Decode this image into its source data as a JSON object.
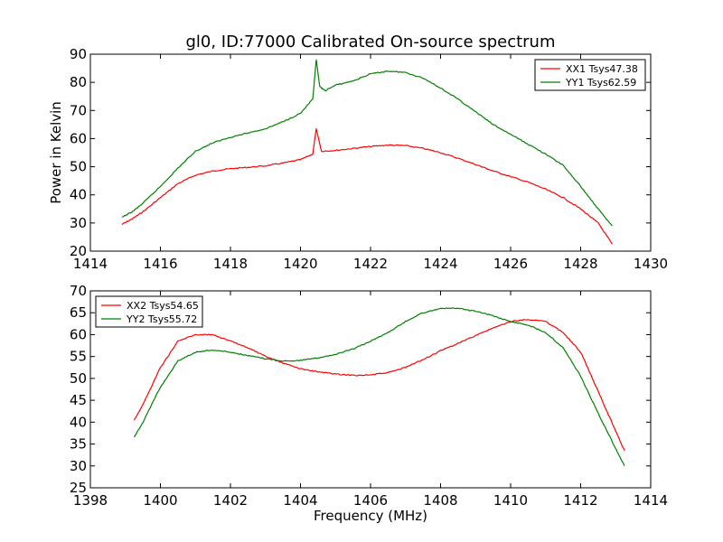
{
  "chart_data": [
    {
      "type": "line",
      "title": "gl0, ID:77000 Calibrated On-source spectrum",
      "xlabel": "",
      "ylabel": "Power in Kelvin",
      "xlim": [
        1414,
        1430
      ],
      "ylim": [
        20,
        90
      ],
      "xticks": [
        1414,
        1416,
        1418,
        1420,
        1422,
        1424,
        1426,
        1428,
        1430
      ],
      "yticks": [
        20,
        30,
        40,
        50,
        60,
        70,
        80,
        90
      ],
      "legend_position": "top-right",
      "series": [
        {
          "name": "XX1 Tsys47.38",
          "color": "#ff0000",
          "points": [
            [
              1414.9,
              29.5
            ],
            [
              1415.2,
              31.5
            ],
            [
              1415.5,
              34
            ],
            [
              1416.0,
              39
            ],
            [
              1416.5,
              44
            ],
            [
              1417.0,
              47
            ],
            [
              1417.5,
              48.5
            ],
            [
              1418.0,
              49.3
            ],
            [
              1418.5,
              49.8
            ],
            [
              1419.0,
              50.3
            ],
            [
              1419.5,
              51.3
            ],
            [
              1420.0,
              52.5
            ],
            [
              1420.35,
              54.5
            ],
            [
              1420.45,
              63.5
            ],
            [
              1420.6,
              55.5
            ],
            [
              1421.0,
              55.8
            ],
            [
              1421.5,
              56.5
            ],
            [
              1422.0,
              57.2
            ],
            [
              1422.5,
              57.7
            ],
            [
              1423.0,
              57.5
            ],
            [
              1423.5,
              56.5
            ],
            [
              1424.0,
              55
            ],
            [
              1424.5,
              53
            ],
            [
              1425.0,
              50.8
            ],
            [
              1425.5,
              48.5
            ],
            [
              1426.0,
              46.5
            ],
            [
              1426.5,
              44.5
            ],
            [
              1427.0,
              42
            ],
            [
              1427.5,
              39
            ],
            [
              1428.0,
              35
            ],
            [
              1428.5,
              30
            ],
            [
              1428.9,
              22.5
            ]
          ]
        },
        {
          "name": "YY1 Tsys62.59",
          "color": "#008000",
          "points": [
            [
              1414.9,
              32
            ],
            [
              1415.2,
              34
            ],
            [
              1415.5,
              37
            ],
            [
              1416.0,
              43
            ],
            [
              1416.5,
              49.5
            ],
            [
              1417.0,
              55.5
            ],
            [
              1417.5,
              58.5
            ],
            [
              1418.0,
              60.5
            ],
            [
              1418.5,
              62
            ],
            [
              1419.0,
              63.5
            ],
            [
              1419.5,
              66
            ],
            [
              1420.0,
              69
            ],
            [
              1420.35,
              74
            ],
            [
              1420.45,
              88
            ],
            [
              1420.55,
              78.5
            ],
            [
              1420.7,
              77
            ],
            [
              1421.0,
              79
            ],
            [
              1421.5,
              80.5
            ],
            [
              1422.0,
              83
            ],
            [
              1422.5,
              84
            ],
            [
              1423.0,
              83.5
            ],
            [
              1423.5,
              81.5
            ],
            [
              1424.0,
              78
            ],
            [
              1424.5,
              74
            ],
            [
              1425.0,
              69.5
            ],
            [
              1425.5,
              65
            ],
            [
              1426.0,
              61.5
            ],
            [
              1426.5,
              58
            ],
            [
              1427.0,
              54.5
            ],
            [
              1427.5,
              50.5
            ],
            [
              1428.0,
              43
            ],
            [
              1428.5,
              35
            ],
            [
              1428.9,
              29
            ]
          ]
        }
      ]
    },
    {
      "type": "line",
      "title": "",
      "xlabel": "Frequency (MHz)",
      "ylabel": "",
      "xlim": [
        1398,
        1414
      ],
      "ylim": [
        25,
        70
      ],
      "xticks": [
        1398,
        1400,
        1402,
        1404,
        1406,
        1408,
        1410,
        1412,
        1414
      ],
      "yticks": [
        25,
        30,
        35,
        40,
        45,
        50,
        55,
        60,
        65,
        70
      ],
      "legend_position": "top-left",
      "series": [
        {
          "name": "XX2 Tsys54.65",
          "color": "#ff0000",
          "points": [
            [
              1399.25,
              40.5
            ],
            [
              1399.5,
              44
            ],
            [
              1400.0,
              52.5
            ],
            [
              1400.5,
              58.5
            ],
            [
              1401.0,
              60
            ],
            [
              1401.5,
              60
            ],
            [
              1402.0,
              58.5
            ],
            [
              1402.5,
              57
            ],
            [
              1403.0,
              55
            ],
            [
              1403.5,
              53.5
            ],
            [
              1404.0,
              52.2
            ],
            [
              1404.5,
              51.5
            ],
            [
              1405.0,
              51
            ],
            [
              1405.5,
              50.7
            ],
            [
              1406.0,
              50.8
            ],
            [
              1406.5,
              51.3
            ],
            [
              1407.0,
              52.5
            ],
            [
              1407.5,
              54.3
            ],
            [
              1408.0,
              56.3
            ],
            [
              1408.5,
              58
            ],
            [
              1409.0,
              59.8
            ],
            [
              1409.5,
              61.5
            ],
            [
              1410.0,
              63
            ],
            [
              1410.5,
              63.5
            ],
            [
              1411.0,
              63
            ],
            [
              1411.5,
              60.5
            ],
            [
              1412.0,
              56
            ],
            [
              1412.5,
              47
            ],
            [
              1413.0,
              38
            ],
            [
              1413.25,
              33.5
            ]
          ]
        },
        {
          "name": "YY2 Tsys55.72",
          "color": "#008000",
          "points": [
            [
              1399.25,
              36.5
            ],
            [
              1399.5,
              40
            ],
            [
              1400.0,
              48
            ],
            [
              1400.5,
              54
            ],
            [
              1401.0,
              56
            ],
            [
              1401.5,
              56.5
            ],
            [
              1402.0,
              56
            ],
            [
              1402.5,
              55.2
            ],
            [
              1403.0,
              54.5
            ],
            [
              1403.5,
              54
            ],
            [
              1404.0,
              54.1
            ],
            [
              1404.5,
              54.7
            ],
            [
              1405.0,
              55.5
            ],
            [
              1405.5,
              56.7
            ],
            [
              1406.0,
              58.5
            ],
            [
              1406.5,
              60.5
            ],
            [
              1407.0,
              63
            ],
            [
              1407.5,
              65
            ],
            [
              1408.0,
              66
            ],
            [
              1408.5,
              66
            ],
            [
              1409.0,
              65.3
            ],
            [
              1409.5,
              64.3
            ],
            [
              1410.0,
              63
            ],
            [
              1410.5,
              62.2
            ],
            [
              1411.0,
              60.5
            ],
            [
              1411.5,
              57
            ],
            [
              1412.0,
              50.5
            ],
            [
              1412.5,
              42
            ],
            [
              1413.0,
              34
            ],
            [
              1413.25,
              30
            ]
          ]
        }
      ]
    }
  ]
}
